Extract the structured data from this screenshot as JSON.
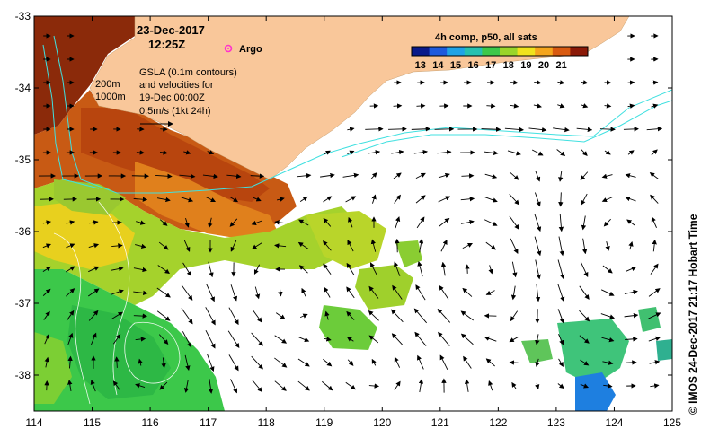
{
  "map": {
    "lon_range": [
      114,
      125
    ],
    "lat_range": [
      -38.5,
      -33
    ],
    "lon_ticks": [
      "114",
      "115",
      "116",
      "117",
      "118",
      "119",
      "120",
      "121",
      "122",
      "123",
      "124",
      "125"
    ],
    "lat_ticks": [
      "-33",
      "-34",
      "-35",
      "-36",
      "-37",
      "-38"
    ],
    "land_color": "#f9c79a",
    "ocean_color": "#ffffff"
  },
  "header": {
    "date": "23-Dec-2017",
    "time": "12:25Z",
    "argo_label": "Argo",
    "argo_marker_color": "#ff33cc"
  },
  "annotation": {
    "line1": "GSLA (0.1m contours)",
    "line2": "and velocities for",
    "line3": "19-Dec 00:00Z",
    "line4": "0.5m/s (1kt 24h)",
    "isobath_200": "200m",
    "isobath_1000": "1000m"
  },
  "colorbar": {
    "title": "4h comp, p50, all sats",
    "ticks": [
      "13",
      "14",
      "15",
      "16",
      "17",
      "18",
      "19",
      "20",
      "21"
    ],
    "min": 13,
    "max": 22,
    "colors": [
      "#0a1a8a",
      "#1e5adc",
      "#1fa3e6",
      "#26c0b0",
      "#3cc84a",
      "#9ad52a",
      "#f0e21c",
      "#f5a51c",
      "#d85a10",
      "#8b1a08"
    ]
  },
  "credit": "© IMOS 24-Dec-2017 21:17 Hobart Time"
}
